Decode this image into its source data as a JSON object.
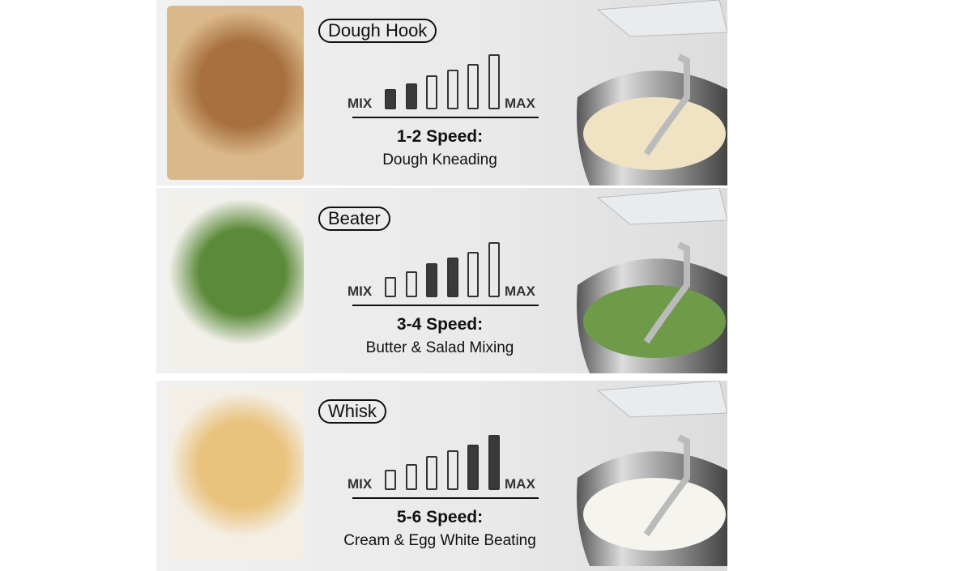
{
  "rows": [
    {
      "attachment": "Dough Hook",
      "speed": "1-2 Speed:",
      "use": "Dough Kneading",
      "active": [
        1,
        2
      ],
      "fill": "#efe3c4",
      "photo": [
        "#d9b88a",
        "#a8703f"
      ]
    },
    {
      "attachment": "Beater",
      "speed": "3-4 Speed:",
      "use": "Butter & Salad Mixing",
      "active": [
        3,
        4
      ],
      "fill": "#6f9a4a",
      "photo": [
        "#f2f0ea",
        "#5b8a3a"
      ]
    },
    {
      "attachment": "Whisk",
      "speed": "5-6 Speed:",
      "use": "Cream & Egg White Beating",
      "active": [
        5,
        6
      ],
      "fill": "#f6f4ee",
      "photo": [
        "#f4efe6",
        "#e9c27c"
      ]
    }
  ],
  "scale": {
    "min_label": "MIX",
    "max_label": "MAX",
    "levels": 6
  }
}
